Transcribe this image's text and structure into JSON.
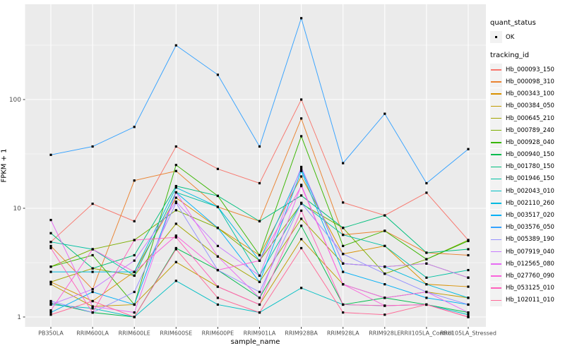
{
  "chart_data": {
    "type": "line",
    "title": "",
    "xlabel": "sample_name",
    "ylabel": "FPKM + 1",
    "y_scale": "log10",
    "grid": true,
    "legend_position": "right",
    "panel_bg": "#EBEBEB",
    "grid_color": "#FFFFFF",
    "point_color": "#000000",
    "point_shape": "small-black-square",
    "ylim": [
      0.82,
      730
    ],
    "y_ticks": [
      1,
      10,
      100
    ],
    "y_tick_labels": [
      "1",
      "10",
      "100"
    ],
    "y_minor_ticks": [
      3.162,
      31.623,
      316.228
    ],
    "categories": [
      "PB350LA",
      "RRIM600LA",
      "RRIM600LE",
      "RRIM600SE",
      "RRIM600PE",
      "RRIM901LA",
      "RRIM928BA",
      "RRIM928LA",
      "RRIM928LE",
      "RRII105LA_Control",
      "RRII105LA_Stressed"
    ],
    "series": [
      {
        "name": "Hb_000093_150",
        "color": "#F8766D",
        "values": [
          4.9,
          11,
          7.6,
          37,
          23,
          17,
          100,
          11.3,
          8.6,
          13.9,
          5.1
        ]
      },
      {
        "name": "Hb_000098_310",
        "color": "#EA8331",
        "values": [
          4.5,
          1.8,
          18,
          22,
          10.3,
          7.6,
          67,
          5.7,
          6.2,
          3.9,
          3.7
        ]
      },
      {
        "name": "Hb_000343_100",
        "color": "#D89000",
        "values": [
          2.1,
          1.4,
          2.6,
          12.5,
          6.6,
          3.7,
          19.6,
          3.8,
          4.5,
          2.0,
          1.9
        ]
      },
      {
        "name": "Hb_000384_050",
        "color": "#C09B00",
        "values": [
          2.0,
          1.25,
          1.3,
          3.2,
          1.9,
          1.3,
          5.2,
          2.0,
          1.5,
          1.7,
          1.5
        ]
      },
      {
        "name": "Hb_000645_210",
        "color": "#A3A500",
        "values": [
          2.1,
          2.8,
          2.4,
          7.2,
          3.6,
          2.1,
          8.0,
          3.1,
          2.9,
          3.1,
          2.3
        ]
      },
      {
        "name": "Hb_000789_240",
        "color": "#7CAE00",
        "values": [
          2.9,
          4.2,
          5.1,
          9.6,
          6.6,
          3.3,
          11.0,
          6.6,
          2.5,
          3.4,
          5.1
        ]
      },
      {
        "name": "Hb_000928_040",
        "color": "#39B600",
        "values": [
          2.9,
          3.7,
          1.3,
          25,
          13,
          3.7,
          46,
          4.5,
          6.2,
          3.4,
          5.0
        ]
      },
      {
        "name": "Hb_000940_150",
        "color": "#00BB4E",
        "values": [
          1.35,
          1.1,
          1.0,
          4.3,
          2.7,
          1.5,
          6.9,
          1.3,
          1.5,
          1.3,
          1.1
        ]
      },
      {
        "name": "Hb_001780_150",
        "color": "#00BF7D",
        "values": [
          5.9,
          2.8,
          3.7,
          16,
          13,
          7.6,
          13.1,
          6.6,
          8.6,
          3.9,
          4.2
        ]
      },
      {
        "name": "Hb_001946_150",
        "color": "#00C1A3",
        "values": [
          4.9,
          4.2,
          2.4,
          14,
          10.3,
          2.4,
          11.2,
          5.7,
          4.5,
          2.3,
          2.7
        ]
      },
      {
        "name": "Hb_002043_010",
        "color": "#00BFC4",
        "values": [
          1.3,
          1.2,
          1.0,
          2.15,
          1.3,
          1.1,
          1.85,
          1.3,
          1.27,
          1.3,
          1.05
        ]
      },
      {
        "name": "Hb_002110_260",
        "color": "#00BAE0",
        "values": [
          2.6,
          2.6,
          2.6,
          15.5,
          10.3,
          3.3,
          23,
          3.1,
          2.9,
          2.0,
          1.5
        ]
      },
      {
        "name": "Hb_003517_020",
        "color": "#00B0F6",
        "values": [
          1.1,
          1.7,
          1.3,
          14,
          6.6,
          2.1,
          22,
          2.6,
          2.0,
          1.5,
          1.3
        ]
      },
      {
        "name": "Hb_003576_050",
        "color": "#35A2FF",
        "values": [
          31,
          37,
          56,
          315,
          169,
          37,
          560,
          26,
          74,
          17,
          35
        ]
      },
      {
        "name": "Hb_005389_190",
        "color": "#9590FF",
        "values": [
          1.4,
          1.1,
          1.7,
          11.2,
          2.7,
          1.7,
          11.2,
          3.8,
          2.5,
          1.7,
          1.3
        ]
      },
      {
        "name": "Hb_007919_040",
        "color": "#C77CFF",
        "values": [
          1.3,
          1.8,
          3.3,
          11.5,
          4.5,
          2.4,
          24,
          3.1,
          2.9,
          3.1,
          2.3
        ]
      },
      {
        "name": "Hb_012565_080",
        "color": "#E76BF3",
        "values": [
          7.8,
          1.25,
          1.1,
          14,
          3.6,
          1.5,
          16.4,
          2.0,
          1.5,
          1.7,
          1.1
        ]
      },
      {
        "name": "Hb_027760_090",
        "color": "#FA62DB",
        "values": [
          1.15,
          4.2,
          2.6,
          5.6,
          2.7,
          3.3,
          16,
          2.0,
          1.27,
          1.3,
          1.0
        ]
      },
      {
        "name": "Hb_053125_010",
        "color": "#FF62BC",
        "values": [
          4.3,
          1.1,
          5.1,
          5.4,
          1.9,
          1.3,
          9.5,
          1.3,
          1.27,
          1.3,
          1.0
        ]
      },
      {
        "name": "Hb_102011_010",
        "color": "#FF6A98",
        "values": [
          1.05,
          1.4,
          1.0,
          4.2,
          1.5,
          1.1,
          4.3,
          1.1,
          1.05,
          1.3,
          1.0
        ]
      }
    ]
  },
  "legend": {
    "quant_status_title": "quant_status",
    "quant_status_items": [
      "OK"
    ],
    "tracking_id_title": "tracking_id"
  }
}
